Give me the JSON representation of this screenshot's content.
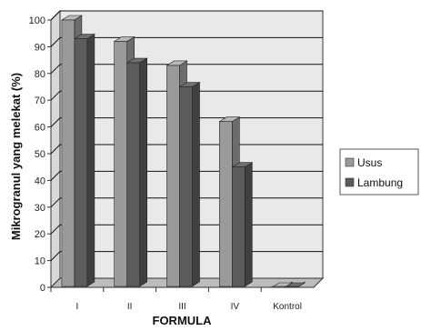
{
  "chart_data": {
    "type": "bar",
    "title": "",
    "xlabel": "FORMULA",
    "ylabel": "Mikrogranul yang melekat (%)",
    "ylim": [
      0,
      100
    ],
    "yticks": [
      0,
      10,
      20,
      30,
      40,
      50,
      60,
      70,
      80,
      90,
      100
    ],
    "categories": [
      "I",
      "II",
      "III",
      "IV",
      "Kontrol"
    ],
    "series": [
      {
        "name": "Usus",
        "values": [
          100,
          92,
          83,
          62,
          0
        ]
      },
      {
        "name": "Lambung",
        "values": [
          93,
          84,
          75,
          45,
          0
        ]
      }
    ],
    "grid": true,
    "legend": "right",
    "colors": {
      "series": [
        "#9a9a9a",
        "#5c5c5c"
      ],
      "plot_back": "#e9e9e9",
      "floor": "#bcbcbc",
      "grid": "#111111"
    }
  }
}
